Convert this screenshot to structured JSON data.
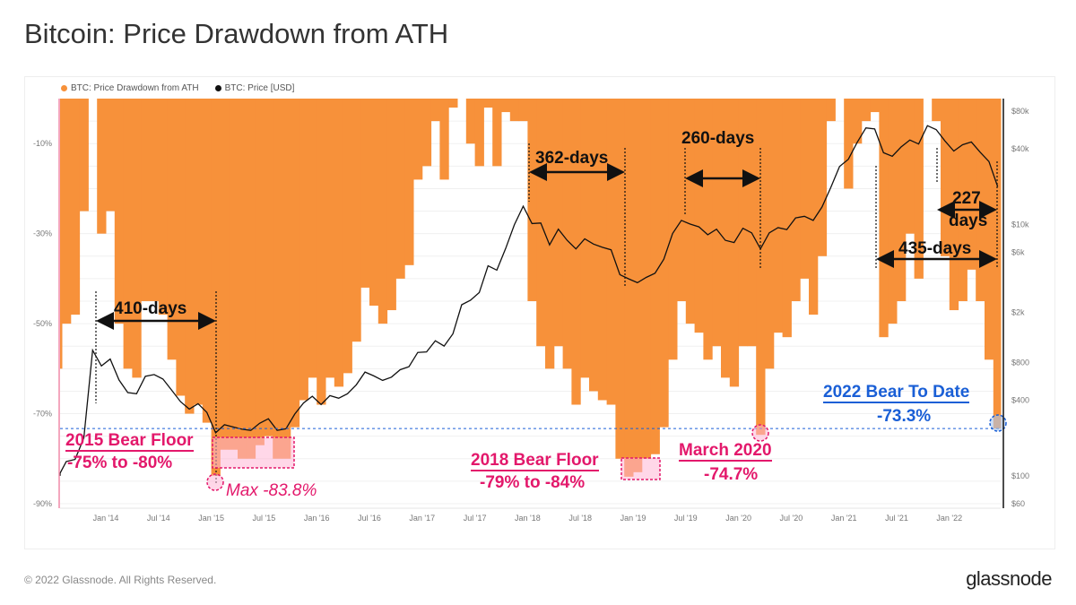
{
  "title": "Bitcoin: Price Drawdown from ATH",
  "footer": "© 2022 Glassnode. All Rights Reserved.",
  "logo": "glassnode",
  "colors": {
    "drawdown": "#f7913a",
    "price": "#111111",
    "annotation_red": "#e3186b",
    "annotation_blue": "#1a5fd6"
  },
  "chart_data": {
    "type": "area",
    "legend_position": "top-left",
    "grid": true,
    "legend": [
      "BTC: Price Drawdown from ATH",
      "BTC: Price [USD]"
    ],
    "x_ticks": [
      "Jan '14",
      "Jul '14",
      "Jan '15",
      "Jul '15",
      "Jan '16",
      "Jul '16",
      "Jan '17",
      "Jul '17",
      "Jan '18",
      "Jul '18",
      "Jan '19",
      "Jul '19",
      "Jan '20",
      "Jul '20",
      "Jan '21",
      "Jul '21",
      "Jan '22"
    ],
    "y_left_ticks": [
      "-10%",
      "-30%",
      "-50%",
      "-70%",
      "-90%"
    ],
    "y_left_range": [
      -90,
      0
    ],
    "y_right_ticks": [
      "$80k",
      "$40k",
      "$10k",
      "$6k",
      "$2k",
      "$800",
      "$400",
      "$100",
      "$60"
    ],
    "y_right_scale": "log",
    "y_right_range": [
      60,
      80000
    ],
    "x_start": "2013-06",
    "series": [
      {
        "name": "BTC: Price Drawdown from ATH",
        "unit": "%",
        "values": [
          -65,
          -60,
          -50,
          -48,
          -25,
          0,
          -30,
          -25,
          -50,
          -60,
          -62,
          -45,
          -45,
          -48,
          -58,
          -66,
          -70,
          -68,
          -72,
          -83.8,
          -78,
          -78,
          -80,
          -80,
          -77,
          -75,
          -80,
          -80,
          -73,
          -67,
          -62,
          -68,
          -62,
          -64,
          -61,
          -54,
          -42,
          -46,
          -50,
          -47,
          -40,
          -37,
          -18,
          -15,
          -5,
          -18,
          -2,
          0,
          -10,
          -15,
          -2,
          -15,
          -3,
          -5,
          -5,
          -45,
          -55,
          -60,
          -55,
          -60,
          -68,
          -62,
          -65,
          -67,
          -68,
          -80,
          -84,
          -83,
          -80,
          -79,
          -73,
          -58,
          -45,
          -50,
          -52,
          -58,
          -55,
          -62,
          -64,
          -55,
          -55,
          -74.7,
          -60,
          -52,
          -53,
          -45,
          -40,
          -48,
          -35,
          -5,
          0,
          -20,
          -10,
          -5,
          -3,
          -53,
          -50,
          -45,
          -30,
          -40,
          0,
          -5,
          -35,
          -47,
          -45,
          -38,
          -45,
          -58,
          -73.3
        ]
      },
      {
        "name": "BTC: Price [USD]",
        "unit": "USD",
        "values": [
          100,
          105,
          130,
          135,
          200,
          1000,
          750,
          850,
          580,
          460,
          450,
          620,
          640,
          590,
          480,
          390,
          340,
          375,
          320,
          220,
          255,
          245,
          235,
          230,
          262,
          285,
          230,
          237,
          310,
          380,
          430,
          370,
          435,
          415,
          450,
          530,
          670,
          625,
          575,
          610,
          700,
          740,
          960,
          970,
          1190,
          1080,
          1350,
          2300,
          2500,
          2880,
          4700,
          4340,
          6450,
          10000,
          14000,
          10200,
          10300,
          6900,
          9200,
          7500,
          6400,
          7700,
          7000,
          6600,
          6300,
          4000,
          3700,
          3450,
          3800,
          4100,
          5300,
          8500,
          10800,
          10100,
          9600,
          8300,
          9200,
          7500,
          7200,
          9350,
          8600,
          6400,
          8600,
          9450,
          9140,
          11300,
          11650,
          10800,
          13800,
          19700,
          29000,
          33100,
          45100,
          58800,
          57700,
          37300,
          35000,
          41500,
          47100,
          43800,
          61300,
          57000,
          46300,
          38500,
          43200,
          45500,
          37700,
          31800,
          20000
        ]
      }
    ],
    "reference_line": {
      "value": -73.3,
      "style": "dashed",
      "color": "#1a5fd6"
    },
    "annotations": {
      "d410": "410-days",
      "d362": "362-days",
      "d260": "260-days",
      "d227a": "227",
      "d227b": "days",
      "d435": "435-days",
      "bear2015_title": "2015 Bear Floor",
      "bear2015_range": "-75% to -80%",
      "max2015": "Max -83.8%",
      "bear2018_title": "2018 Bear Floor",
      "bear2018_range": "-79% to -84%",
      "march2020_title": "March 2020",
      "march2020_value": "-74.7%",
      "bear2022_title": "2022 Bear To Date",
      "bear2022_value": "-73.3%"
    }
  }
}
